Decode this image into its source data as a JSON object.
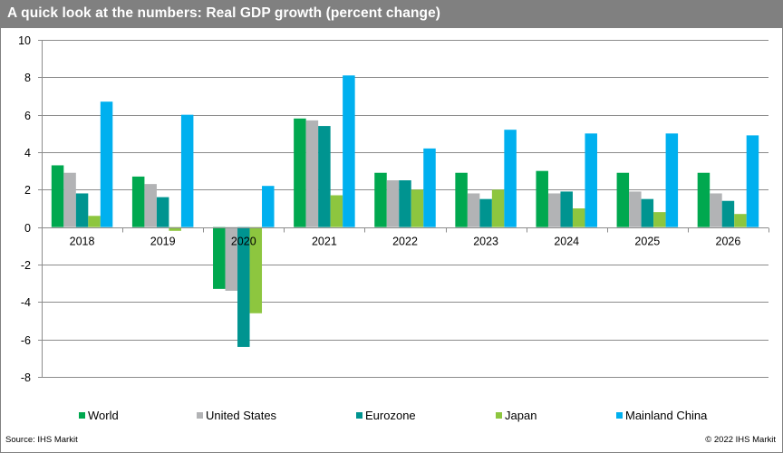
{
  "header": {
    "title": "A quick look at the numbers: Real GDP growth (percent change)"
  },
  "footer": {
    "source": "Source: IHS Markit",
    "copyright": "© 2022 IHS Markit"
  },
  "chart_data": {
    "type": "bar",
    "title": "A quick look at the numbers: Real GDP growth (percent change)",
    "xlabel": "",
    "ylabel": "",
    "ylim": [
      -8,
      10
    ],
    "yticks": [
      10,
      8,
      6,
      4,
      2,
      0,
      -2,
      -4,
      -6,
      -8
    ],
    "grid": true,
    "legend_position": "bottom",
    "categories": [
      "2018",
      "2019",
      "2020",
      "2021",
      "2022",
      "2023",
      "2024",
      "2025",
      "2026"
    ],
    "series": [
      {
        "name": "World",
        "color": "#00a84f",
        "values": [
          3.3,
          2.7,
          -3.3,
          5.8,
          2.9,
          2.9,
          3.0,
          2.9,
          2.9
        ]
      },
      {
        "name": "United States",
        "color": "#b2b3b5",
        "values": [
          2.9,
          2.3,
          -3.4,
          5.7,
          2.5,
          1.8,
          1.8,
          1.9,
          1.8
        ]
      },
      {
        "name": "Eurozone",
        "color": "#009490",
        "values": [
          1.8,
          1.6,
          -6.4,
          5.4,
          2.5,
          1.5,
          1.9,
          1.5,
          1.4
        ]
      },
      {
        "name": "Japan",
        "color": "#8dc63f",
        "values": [
          0.6,
          -0.2,
          -4.6,
          1.7,
          2.0,
          2.0,
          1.0,
          0.8,
          0.7
        ]
      },
      {
        "name": "Mainland China",
        "color": "#00b0ef",
        "values": [
          6.7,
          6.0,
          2.2,
          8.1,
          4.2,
          5.2,
          5.0,
          5.0,
          4.9
        ]
      }
    ]
  }
}
